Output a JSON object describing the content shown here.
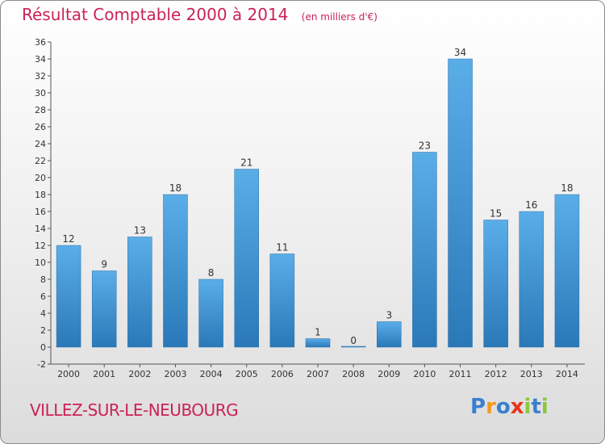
{
  "header": {
    "title": "Résultat Comptable 2000 à 2014",
    "unit": "(en milliers d'€)"
  },
  "footer": {
    "town": "VILLEZ-SUR-LE-NEUBOURG",
    "logo": "Proxiti"
  },
  "colors": {
    "title": "#cc2255",
    "bar_light": "#5aaee8",
    "bar_dark": "#2a78b8"
  },
  "chart_data": {
    "type": "bar",
    "title": "Résultat Comptable 2000 à 2014",
    "ylabel": "(en milliers d'€)",
    "xlabel": "",
    "categories": [
      "2000",
      "2001",
      "2002",
      "2003",
      "2004",
      "2005",
      "2006",
      "2007",
      "2008",
      "2009",
      "2010",
      "2011",
      "2012",
      "2013",
      "2014"
    ],
    "values": [
      12,
      9,
      13,
      18,
      8,
      21,
      11,
      1,
      0,
      3,
      23,
      34,
      15,
      16,
      18
    ],
    "ylim": [
      -2,
      36
    ],
    "yticks": [
      -2,
      0,
      2,
      4,
      6,
      8,
      10,
      12,
      14,
      16,
      18,
      20,
      22,
      24,
      26,
      28,
      30,
      32,
      34,
      36
    ],
    "grid": false,
    "legend": "none"
  }
}
